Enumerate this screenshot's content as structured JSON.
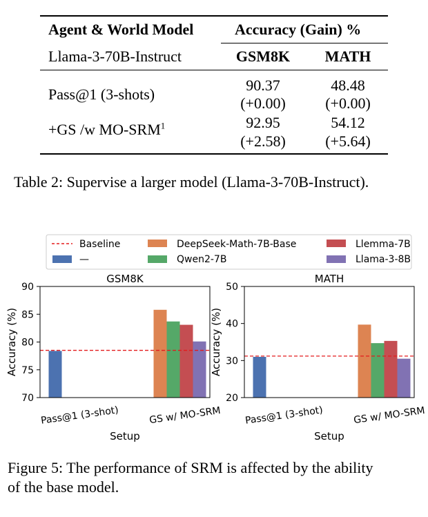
{
  "table": {
    "header": {
      "col1": "Agent & World Model",
      "col2": "Accuracy (Gain) %"
    },
    "subheader": {
      "model": "Llama-3-70B-Instruct",
      "gsm8k": "GSM8K",
      "math": "MATH"
    },
    "rows": [
      {
        "label": "Pass@1 (3-shots)",
        "label_sup": "",
        "gsm8k": "90.37",
        "gsm8k_gain": "(+0.00)",
        "math": "48.48",
        "math_gain": "(+0.00)"
      },
      {
        "label": "+GS /w MO-SRM",
        "label_sup": "1",
        "gsm8k": "92.95",
        "gsm8k_gain": "(+2.58)",
        "math": "54.12",
        "math_gain": "(+5.64)"
      }
    ],
    "caption": "Table 2: Supervise a larger model (Llama-3-70B-Instruct)."
  },
  "figure_caption": {
    "line1": "Figure 5: The performance of SRM is affected by the ability",
    "line2": "of the base model."
  },
  "chart_data": [
    {
      "type": "bar",
      "title": "GSM8K",
      "xlabel": "Setup",
      "ylabel": "Accuracy (%)",
      "ylim": [
        70,
        90
      ],
      "yticks": [
        70,
        75,
        80,
        85,
        90
      ],
      "categories": [
        "Pass@1 (3-shot)",
        "GS w/ MO-SRM"
      ],
      "baseline": 78.5,
      "series": [
        {
          "name": "—",
          "color": "#4c72b0",
          "values": [
            78.4,
            null
          ]
        },
        {
          "name": "DeepSeek-Math-7B-Base",
          "color": "#dd8452",
          "values": [
            null,
            85.8
          ]
        },
        {
          "name": "Qwen2-7B",
          "color": "#55a868",
          "values": [
            null,
            83.7
          ]
        },
        {
          "name": "Llemma-7B",
          "color": "#c44e52",
          "values": [
            null,
            83.1
          ]
        },
        {
          "name": "Llama-3-8B",
          "color": "#8172b3",
          "values": [
            null,
            80.1
          ]
        }
      ]
    },
    {
      "type": "bar",
      "title": "MATH",
      "xlabel": "Setup",
      "ylabel": "Accuracy (%)",
      "ylim": [
        20,
        50
      ],
      "yticks": [
        20,
        30,
        40,
        50
      ],
      "categories": [
        "Pass@1 (3-shot)",
        "GS w/ MO-SRM"
      ],
      "baseline": 31.2,
      "series": [
        {
          "name": "—",
          "color": "#4c72b0",
          "values": [
            31.0,
            null
          ]
        },
        {
          "name": "DeepSeek-Math-7B-Base",
          "color": "#dd8452",
          "values": [
            null,
            39.7
          ]
        },
        {
          "name": "Qwen2-7B",
          "color": "#55a868",
          "values": [
            null,
            34.7
          ]
        },
        {
          "name": "Llemma-7B",
          "color": "#c44e52",
          "values": [
            null,
            35.3
          ]
        },
        {
          "name": "Llama-3-8B",
          "color": "#8172b3",
          "values": [
            null,
            30.5
          ]
        }
      ]
    }
  ],
  "legend": {
    "baseline_label": "Baseline",
    "baseline_color": "#e31a1c",
    "entries": [
      {
        "name": "—",
        "color": "#4c72b0"
      },
      {
        "name": "DeepSeek-Math-7B-Base",
        "color": "#dd8452"
      },
      {
        "name": "Qwen2-7B",
        "color": "#55a868"
      },
      {
        "name": "Llemma-7B",
        "color": "#c44e52"
      },
      {
        "name": "Llama-3-8B",
        "color": "#8172b3"
      }
    ]
  }
}
